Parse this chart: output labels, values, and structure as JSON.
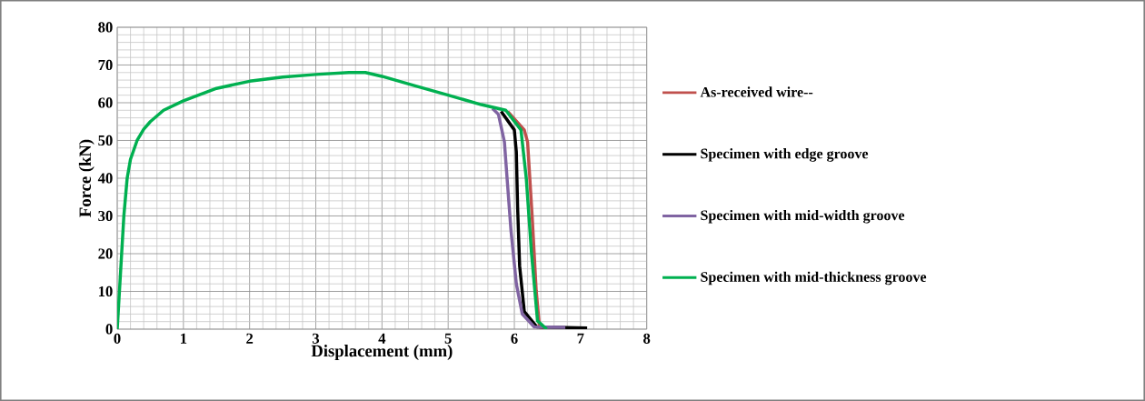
{
  "chart_data": {
    "type": "line",
    "xlabel": "Displacement (mm)",
    "ylabel": "Force (kN)",
    "xlim": [
      0,
      8
    ],
    "ylim": [
      0,
      80
    ],
    "xticks": [
      0,
      1,
      2,
      3,
      4,
      5,
      6,
      7,
      8
    ],
    "yticks": [
      0,
      10,
      20,
      30,
      40,
      50,
      60,
      70,
      80
    ],
    "grid": true,
    "legend": "right",
    "line_style": "solid",
    "marker": "none",
    "series": [
      {
        "name": "As-received wire--",
        "color": "#c0504d",
        "x": [
          5.9,
          6.15,
          6.2,
          6.27,
          6.33,
          6.38,
          6.45
        ],
        "values": [
          57.7,
          52.8,
          49.6,
          29.6,
          10.3,
          0.6,
          0.3
        ]
      },
      {
        "name": "Specimen with edge groove",
        "color": "#000000",
        "x": [
          5.8,
          6.0,
          6.03,
          6.05,
          6.08,
          6.15,
          6.34,
          7.1
        ],
        "values": [
          57.7,
          52.8,
          47,
          32,
          16.7,
          4.7,
          0.6,
          0.3
        ]
      },
      {
        "name": "Specimen with mid-width groove",
        "color": "#8064a2",
        "x": [
          5.67,
          5.76,
          5.85,
          5.89,
          5.95,
          6.03,
          6.12,
          6.3,
          6.77
        ],
        "values": [
          58.5,
          56.9,
          49.6,
          40,
          26,
          12,
          4,
          0.6,
          0.5
        ]
      },
      {
        "name": "Specimen with mid-thickness groove",
        "color": "#00b050",
        "x": [
          0,
          0.05,
          0.1,
          0.15,
          0.2,
          0.3,
          0.4,
          0.5,
          0.7,
          1,
          1.5,
          2,
          2.5,
          3,
          3.5,
          3.75,
          4,
          4.5,
          5,
          5.5,
          5.87,
          6.1,
          6.18,
          6.26,
          6.35,
          6.49
        ],
        "values": [
          0,
          15,
          30,
          40,
          45,
          50,
          53,
          55,
          58,
          60.5,
          63.8,
          65.7,
          66.8,
          67.5,
          68,
          68,
          67,
          64.5,
          62,
          59.5,
          58,
          52.8,
          40,
          20,
          2.2,
          0
        ]
      }
    ]
  }
}
